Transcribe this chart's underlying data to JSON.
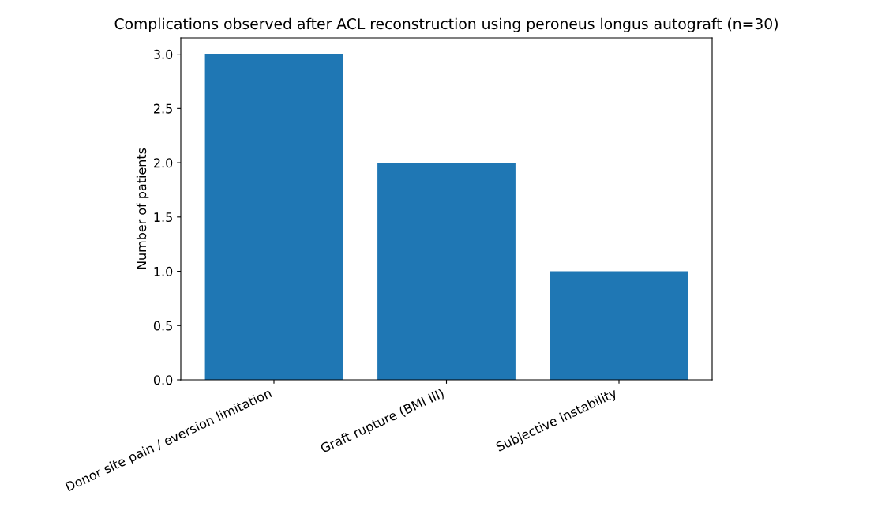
{
  "chart_data": {
    "type": "bar",
    "title": "Complications observed after ACL reconstruction using peroneus longus autograft (n=30)",
    "categories": [
      "Donor site pain / eversion limitation",
      "Graft rupture (BMI III)",
      "Subjective instability"
    ],
    "values": [
      3,
      2,
      1
    ],
    "color": "#1f77b4",
    "ylabel": "Number of patients",
    "ylim": [
      0,
      3.15
    ],
    "yticks": [
      {
        "value": 0,
        "label": "0.0"
      },
      {
        "value": 0.5,
        "label": "0.5"
      },
      {
        "value": 1,
        "label": "1.0"
      },
      {
        "value": 1.5,
        "label": "1.5"
      },
      {
        "value": 2,
        "label": "2.0"
      },
      {
        "value": 2.5,
        "label": "2.5"
      },
      {
        "value": 3,
        "label": "3.0"
      }
    ],
    "grid": false,
    "legend": false
  }
}
